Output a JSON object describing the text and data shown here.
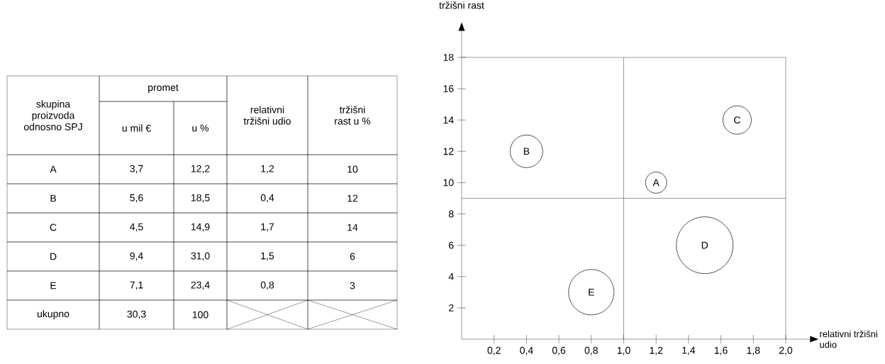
{
  "chart_data": [
    {
      "type": "other",
      "ylabel": "skupina proizvoda odnosno SPJ",
      "annotations": [
        "promet"
      ],
      "categories": [
        "u mil €",
        "u %",
        "relativni tržišni udio",
        "tržišni rast u %"
      ],
      "y_categories": [
        "A",
        "B",
        "C",
        "D",
        "E",
        "ukupno"
      ],
      "cell_labels": [
        [
          "3,7",
          "12,2",
          "1,2",
          "10"
        ],
        [
          "5,6",
          "18,5",
          "0,4",
          "12"
        ],
        [
          "4,5",
          "14,9",
          "1,7",
          "14"
        ],
        [
          "9,4",
          "31,0",
          "1,5",
          "6"
        ],
        [
          "7,1",
          "23,4",
          "0,8",
          "3"
        ],
        [
          "30,3",
          "100",
          null,
          null
        ]
      ]
    },
    {
      "type": "bubble",
      "xlabel": "relativni tržišni udio",
      "ylabel": "tržišni rast",
      "color": "#222222",
      "marker": "circle",
      "x": [
        1.2,
        0.4,
        1.7,
        1.5,
        0.8
      ],
      "values": [
        10,
        12,
        14,
        6,
        3
      ],
      "sizes": [
        0.14,
        0.33,
        0.25,
        1,
        0.64
      ],
      "xlim": [
        0,
        2.15
      ],
      "ylim": [
        0,
        19.7
      ],
      "xticks": [
        {
          "value": 0.2,
          "label": "0,2"
        },
        {
          "value": 0.4,
          "label": "0,4"
        },
        {
          "value": 0.6,
          "label": "0,6"
        },
        {
          "value": 0.8,
          "label": "0,8"
        },
        {
          "value": 1.0,
          "label": "1,0"
        },
        {
          "value": 1.2,
          "label": "1,2"
        },
        {
          "value": 1.4,
          "label": "1,4"
        },
        {
          "value": 1.6,
          "label": "1,6"
        },
        {
          "value": 1.8,
          "label": "1,8"
        },
        {
          "value": 2.0,
          "label": "2,0"
        }
      ],
      "yticks": [
        2,
        4,
        6,
        8,
        10,
        12,
        14,
        16,
        18
      ],
      "ref_lines": [
        {
          "axis": "y",
          "value": 9
        },
        {
          "axis": "x",
          "value": 1.0
        },
        {
          "axis": "y",
          "value": 18
        },
        {
          "axis": "x",
          "value": 2.0
        }
      ],
      "annotations": [
        {
          "text": "A",
          "x": 1.2,
          "y": 10
        },
        {
          "text": "B",
          "x": 0.4,
          "y": 12
        },
        {
          "text": "C",
          "x": 1.7,
          "y": 14
        },
        {
          "text": "D",
          "x": 1.5,
          "y": 6
        },
        {
          "text": "E",
          "x": 0.8,
          "y": 3
        }
      ]
    }
  ]
}
